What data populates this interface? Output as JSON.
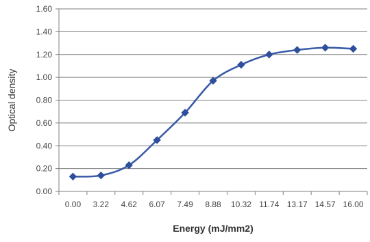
{
  "chart_data": {
    "type": "line",
    "title": "",
    "xlabel": "Energy (mJ/mm2)",
    "ylabel": "Optical density",
    "categories": [
      "0.00",
      "3.22",
      "4.62",
      "6.07",
      "7.49",
      "8.88",
      "10.32",
      "11.74",
      "13.17",
      "14.57",
      "16.00"
    ],
    "series": [
      {
        "values": [
          0.13,
          0.14,
          0.23,
          0.45,
          0.69,
          0.97,
          1.11,
          1.2,
          1.24,
          1.26,
          1.25
        ]
      }
    ],
    "ylim": [
      0,
      1.6
    ],
    "yticks": [
      "0.00",
      "0.20",
      "0.40",
      "0.60",
      "0.80",
      "1.00",
      "1.20",
      "1.40",
      "1.60"
    ],
    "grid": "horizontal",
    "smooth": true,
    "marker": "diamond",
    "colors": {
      "line": "#3a5ba8",
      "marker": "#2f4f9c",
      "grid": "#7f7f7f",
      "axis": "#7f7f7f"
    }
  }
}
